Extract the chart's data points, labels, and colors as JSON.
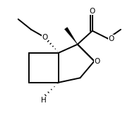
{
  "bg_color": "#ffffff",
  "lw": 1.4,
  "figsize": [
    1.94,
    1.84
  ],
  "dpi": 100,
  "xlim": [
    0,
    10
  ],
  "ylim": [
    0,
    10
  ]
}
